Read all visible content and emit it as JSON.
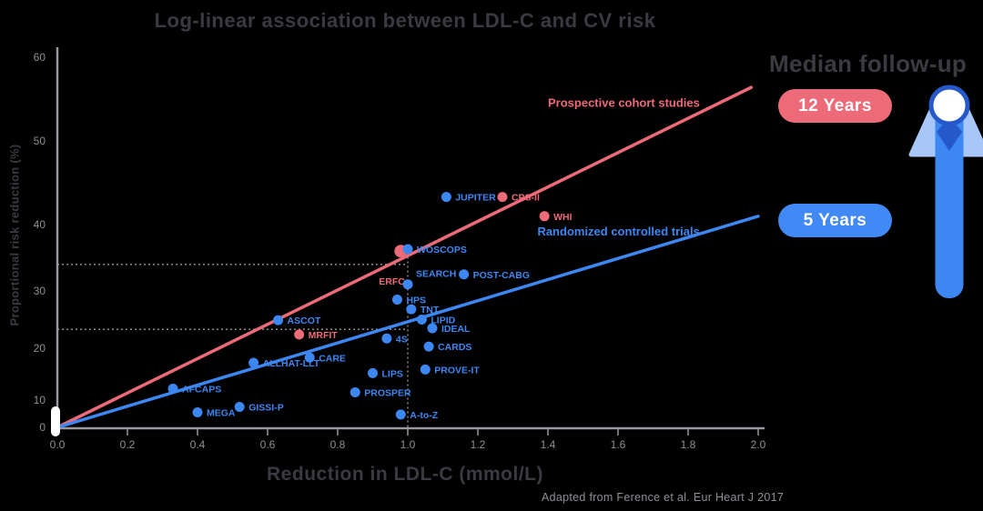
{
  "title": "Log-linear association between LDL-C and CV risk",
  "caption": "Adapted from Ference et al. Eur Heart J 2017",
  "legend": {
    "heading": "Median follow-up",
    "items": [
      {
        "label": "12 Years",
        "color": "#ed6a79"
      },
      {
        "label": "5 Years",
        "color": "#4189f4"
      }
    ]
  },
  "icon": {
    "name": "pin-up-icon",
    "bar_color": "#3d87f2",
    "wing_color": "#a6c7f8",
    "ring_color": "#2559c9",
    "circle_fill": "#ffffff"
  },
  "colors": {
    "axis": "#98989e",
    "tick_text": "#8f8f96",
    "title_text": "#3a3a42",
    "reference_line": "#9a9aa0"
  },
  "chart_data": {
    "type": "scatter",
    "title": "Log-linear association between LDL-C and CV risk",
    "xlabel": "Reduction in LDL-C (mmol/L)",
    "ylabel": "Proportional risk reduction (%)",
    "xlim": [
      0,
      2
    ],
    "ylim": [
      0,
      60
    ],
    "y_scale": "log-risk (non-linear spacing)",
    "grid": false,
    "legend_position": "right",
    "x_ticks": [
      0.0,
      0.2,
      0.4,
      0.6,
      0.8,
      1.0,
      1.2,
      1.4,
      1.6,
      1.8,
      2.0
    ],
    "x_tick_labels": [
      "0.0",
      "0.2",
      "0.4",
      "0.6",
      "0.8",
      "1.0",
      "1.2",
      "1.4",
      "1.6",
      "1.8",
      "2.0"
    ],
    "y_ticks": [
      0,
      10,
      20,
      30,
      40,
      50,
      60
    ],
    "y_tick_labels": [
      "0",
      "10",
      "20",
      "30",
      "40",
      "50",
      "60"
    ],
    "reference_lines": {
      "vertical_x": 1.0,
      "vertical_top_y": 36.5,
      "horizontal_y": [
        34.0,
        23.3
      ]
    },
    "series": [
      {
        "name": "Prospective cohort studies",
        "median_follow_up": "12 Years",
        "color": "#ed6a79",
        "trend": {
          "x1": 0,
          "y1": 0,
          "x2": 1.98,
          "y2": 56.4
        },
        "points": [
          {
            "x": 0.69,
            "y": 22.4,
            "label": "MRFIT"
          },
          {
            "x": 0.98,
            "y": 36.0,
            "label": "ERFC",
            "r": 7,
            "label_dx": -24,
            "label_dy": 37
          },
          {
            "x": 1.27,
            "y": 43.3,
            "label": "CPS-II"
          },
          {
            "x": 1.39,
            "y": 41.0,
            "label": "WHI"
          }
        ]
      },
      {
        "name": "Randomized controlled trials",
        "median_follow_up": "5 Years",
        "color": "#3d87f2",
        "trend": {
          "x1": 0,
          "y1": 0,
          "x2": 2.0,
          "y2": 41.0
        },
        "points": [
          {
            "x": 0.33,
            "y": 12.2,
            "label": "AFCAPS"
          },
          {
            "x": 0.4,
            "y": 5.5,
            "label": "MEGA"
          },
          {
            "x": 0.52,
            "y": 7.5,
            "label": "GISSI-P"
          },
          {
            "x": 0.56,
            "y": 17.2,
            "label": "ALLHAT-LLT"
          },
          {
            "x": 0.63,
            "y": 24.9,
            "label": "ASCOT"
          },
          {
            "x": 0.72,
            "y": 18.2,
            "label": "CARE"
          },
          {
            "x": 0.85,
            "y": 11.5,
            "label": "PROSPER"
          },
          {
            "x": 0.9,
            "y": 15.2,
            "label": "LIPS"
          },
          {
            "x": 0.94,
            "y": 21.7,
            "label": "4S"
          },
          {
            "x": 0.98,
            "y": 4.7,
            "label": "A-to-Z"
          },
          {
            "x": 0.97,
            "y": 28.5,
            "label": "HPS"
          },
          {
            "x": 1.0,
            "y": 31.0,
            "label": "SEARCH",
            "label_dx": 9,
            "label_dy": -8
          },
          {
            "x": 1.01,
            "y": 26.8,
            "label": "TNT"
          },
          {
            "x": 1.04,
            "y": 25.0,
            "label": "LIPID"
          },
          {
            "x": 1.07,
            "y": 23.5,
            "label": "IDEAL"
          },
          {
            "x": 1.05,
            "y": 15.9,
            "label": "PROVE-IT"
          },
          {
            "x": 1.06,
            "y": 20.3,
            "label": "CARDS"
          },
          {
            "x": 1.11,
            "y": 43.3,
            "label": "JUPITER"
          },
          {
            "x": 1.16,
            "y": 32.5,
            "label": "POST-CABG"
          },
          {
            "x": 1.0,
            "y": 36.3,
            "label": "WOSCOPS"
          }
        ]
      }
    ],
    "annotations": [
      {
        "text": "Prospective cohort studies",
        "x": 1.4,
        "y": 54.5,
        "series": 0
      },
      {
        "text": "Randomized controlled trials",
        "x": 1.37,
        "y": 38.9,
        "series": 1
      }
    ]
  }
}
